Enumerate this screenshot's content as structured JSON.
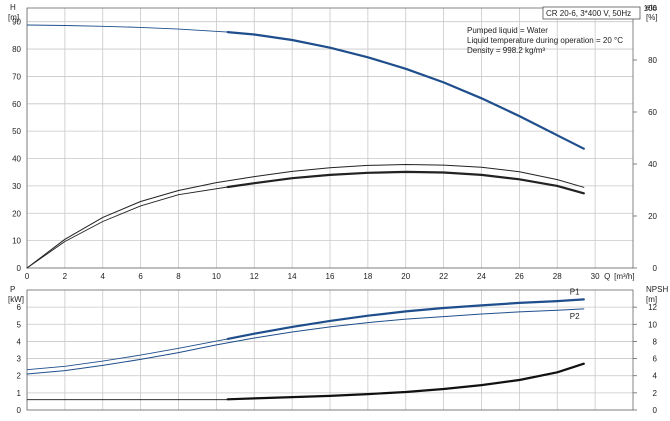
{
  "header_box": "CR 20-6, 3*400 V, 50Hz",
  "info_lines": [
    "Pumped liquid = Water",
    "Liquid temperature during operation = 20 °C",
    "Density = 998.2 kg/m³"
  ],
  "chart_data": [
    {
      "type": "line",
      "name": "head-efficiency",
      "xlabel": "Q [m³/h]",
      "x_axis_name": "Q",
      "x_axis_unit": "[m³/h]",
      "ylabel": "H [m]",
      "y_axis_name": "H",
      "y_axis_unit": "[m]",
      "y2label": "eta [%]",
      "y2_axis_name": "eta",
      "y2_axis_unit": "[%]",
      "xlim": [
        0,
        32
      ],
      "ylim": [
        0,
        95
      ],
      "y2lim": [
        0,
        100
      ],
      "x_ticks": [
        0,
        2,
        4,
        6,
        8,
        10,
        12,
        14,
        16,
        18,
        20,
        22,
        24,
        26,
        28,
        30
      ],
      "y_ticks": [
        0,
        10,
        20,
        30,
        40,
        50,
        60,
        70,
        80,
        90
      ],
      "y2_ticks": [
        0,
        20,
        40,
        60,
        80,
        100
      ],
      "grid": true,
      "series": [
        {
          "axis": "left",
          "role": "head",
          "color": "#1f4e8c",
          "thin_x": [
            0,
            2,
            4,
            6,
            8,
            10.6
          ],
          "thin_y": [
            88.8,
            88.6,
            88.3,
            87.9,
            87.3,
            86.2
          ],
          "x": [
            10.6,
            12,
            14,
            16,
            18,
            20,
            22,
            24,
            26,
            28,
            29.4
          ],
          "y": [
            86.2,
            85.3,
            83.3,
            80.5,
            77.0,
            72.8,
            67.8,
            62.0,
            55.5,
            48.5,
            43.6
          ]
        },
        {
          "axis": "left",
          "role": "efficiency-outer",
          "color": "#222222",
          "x": [
            0,
            2,
            4,
            6,
            8,
            10,
            12,
            14,
            16,
            18,
            20,
            22,
            24,
            26,
            28,
            29.4
          ],
          "y": [
            0,
            10.5,
            18.5,
            24.3,
            28.3,
            31.2,
            33.4,
            35.3,
            36.6,
            37.5,
            37.8,
            37.6,
            36.8,
            35.2,
            32.3,
            29.5
          ]
        },
        {
          "axis": "left",
          "role": "efficiency",
          "color": "#222222",
          "thin_x": [
            0,
            2,
            4,
            6,
            8,
            10.6
          ],
          "thin_y": [
            0,
            9.7,
            17.0,
            22.7,
            26.8,
            29.6
          ],
          "x": [
            10.6,
            12,
            14,
            16,
            18,
            20,
            22,
            24,
            26,
            28,
            29.4
          ],
          "y": [
            29.6,
            31.0,
            32.8,
            34.0,
            34.8,
            35.1,
            34.9,
            34.0,
            32.4,
            30.0,
            27.3
          ]
        }
      ]
    },
    {
      "type": "line",
      "name": "power-npsh",
      "xlabel": "",
      "ylabel": "P [kW]",
      "y_axis_name": "P",
      "y_axis_unit": "[kW]",
      "y2label": "NPSH [m]",
      "y2_axis_name": "NPSH",
      "y2_axis_unit": "[m]",
      "xlim": [
        0,
        32
      ],
      "ylim": [
        0,
        7
      ],
      "y2lim": [
        0,
        14
      ],
      "x_ticks": [
        0,
        2,
        4,
        6,
        8,
        10,
        12,
        14,
        16,
        18,
        20,
        22,
        24,
        26,
        28,
        30
      ],
      "y_ticks": [
        0,
        1,
        2,
        3,
        4,
        5,
        6
      ],
      "y2_ticks": [
        0,
        2,
        4,
        6,
        8,
        10,
        12
      ],
      "grid": true,
      "series": [
        {
          "name": "P1",
          "axis": "left",
          "color": "#1f4e8c",
          "thin_x": [
            0,
            2,
            4,
            6,
            8,
            10.6
          ],
          "thin_y": [
            2.35,
            2.55,
            2.85,
            3.2,
            3.6,
            4.15
          ],
          "x": [
            10.6,
            12,
            14,
            16,
            18,
            20,
            22,
            24,
            26,
            28,
            29.4
          ],
          "y": [
            4.15,
            4.45,
            4.85,
            5.2,
            5.5,
            5.75,
            5.95,
            6.1,
            6.25,
            6.35,
            6.45
          ]
        },
        {
          "name": "P2",
          "axis": "left",
          "color": "#1f4e8c",
          "x": [
            0,
            2,
            4,
            6,
            8,
            10,
            12,
            14,
            16,
            18,
            20,
            22,
            24,
            26,
            28,
            29.4
          ],
          "y": [
            2.1,
            2.3,
            2.6,
            2.95,
            3.35,
            3.8,
            4.2,
            4.55,
            4.85,
            5.1,
            5.3,
            5.45,
            5.6,
            5.72,
            5.82,
            5.9
          ]
        },
        {
          "axis": "right",
          "role": "NPSH",
          "color": "#111111",
          "thin_x": [
            0,
            10.6
          ],
          "thin_y": [
            1.2,
            1.2
          ],
          "x": [
            10.6,
            12,
            14,
            16,
            18,
            20,
            22,
            24,
            26,
            28,
            29.4
          ],
          "y": [
            1.25,
            1.35,
            1.5,
            1.65,
            1.85,
            2.1,
            2.45,
            2.9,
            3.5,
            4.4,
            5.4
          ]
        }
      ]
    }
  ]
}
